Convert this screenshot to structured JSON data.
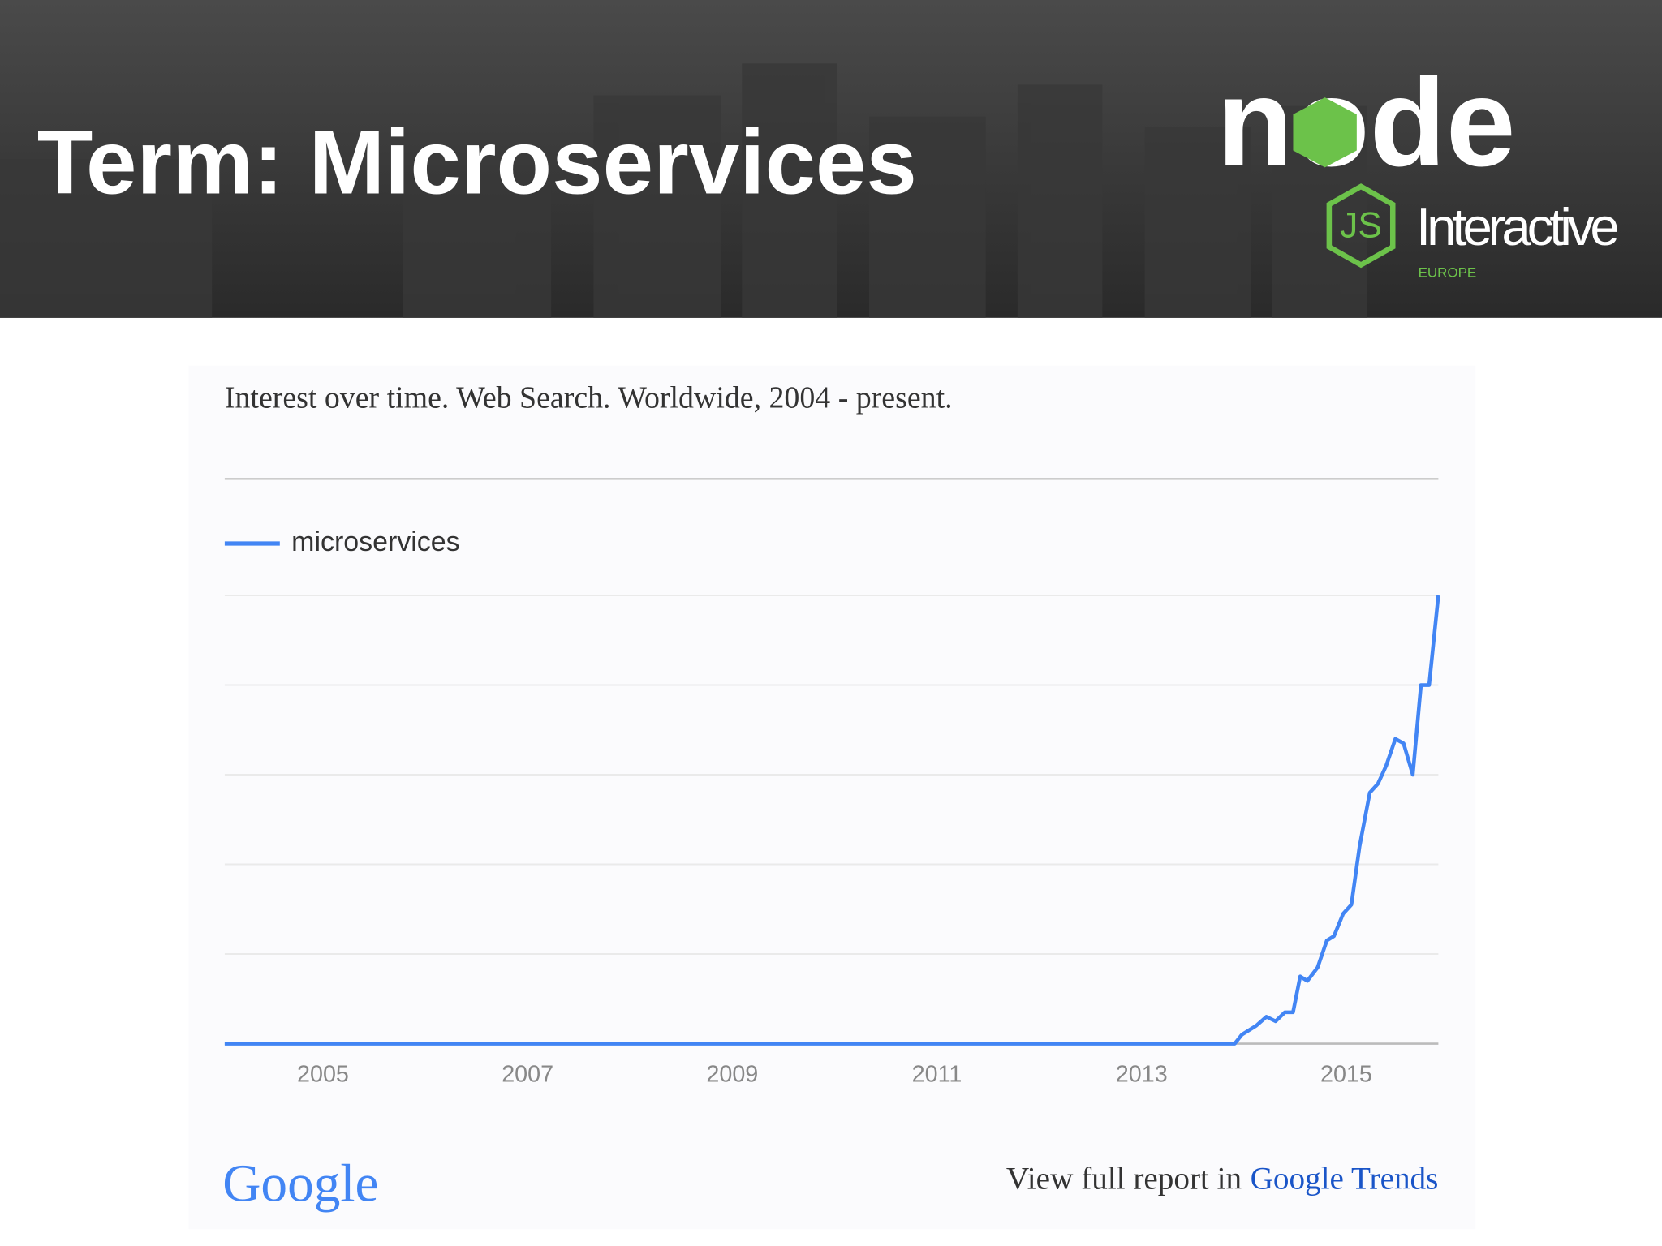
{
  "header": {
    "title": "Term: Microservices",
    "logo_node": "node",
    "logo_js": "JS",
    "logo_interactive": "Interactive",
    "logo_region": "EUROPE"
  },
  "chart_data": {
    "type": "line",
    "title": "Interest over time. Web Search. Worldwide, 2004 - present.",
    "x": [
      2004.04,
      2013.91,
      2013.98,
      2014.12,
      2014.22,
      2014.31,
      2014.4,
      2014.48,
      2014.55,
      2014.62,
      2014.72,
      2014.81,
      2014.88,
      2014.97,
      2015.05,
      2015.13,
      2015.23,
      2015.31,
      2015.39,
      2015.48,
      2015.56,
      2015.65,
      2015.73,
      2015.81,
      2015.9
    ],
    "series": [
      {
        "name": "microservices",
        "color": "#4285f4",
        "values": [
          0,
          0,
          2,
          4,
          6,
          5,
          7,
          7,
          15,
          14,
          17,
          23,
          24,
          29,
          31,
          44,
          56,
          58,
          62,
          68,
          67,
          60,
          80,
          80,
          100
        ]
      }
    ],
    "xlim": [
      2004.04,
      2015.9
    ],
    "xticks": [
      2005,
      2007,
      2009,
      2011,
      2013,
      2015
    ],
    "ylim": [
      0,
      100
    ],
    "yticks": [
      0,
      20,
      40,
      60,
      80,
      100
    ],
    "grid": true,
    "legend": "top-left"
  },
  "footer": {
    "logo": "Google",
    "report_text": "View full report in",
    "report_link": "Google Trends"
  }
}
